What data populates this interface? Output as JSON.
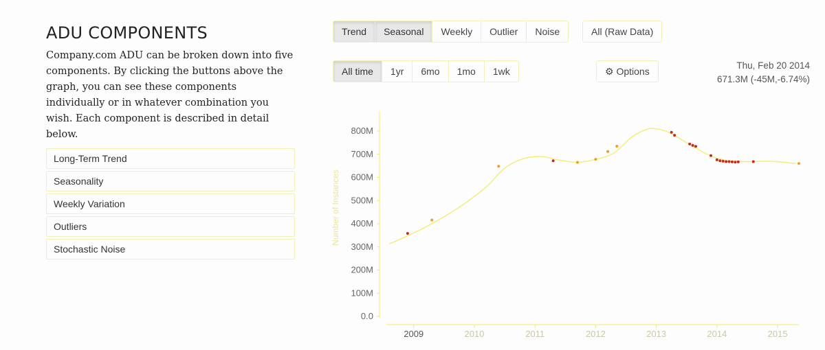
{
  "panel": {
    "title": "ADU COMPONENTS",
    "description": "Company.com ADU can be broken down into five components. By clicking the buttons above the graph, you can see these components individually or in whatever combination you wish. Each component is described in detail below.",
    "sections": [
      {
        "label": "Long-Term Trend"
      },
      {
        "label": "Seasonality"
      },
      {
        "label": "Weekly Variation"
      },
      {
        "label": "Outliers"
      },
      {
        "label": "Stochastic Noise"
      }
    ]
  },
  "component_buttons": {
    "trend": "Trend",
    "seasonal": "Seasonal",
    "weekly": "Weekly",
    "outlier": "Outlier",
    "noise": "Noise",
    "raw": "All (Raw Data)"
  },
  "range_buttons": {
    "all": "All time",
    "y1": "1yr",
    "m6": "6mo",
    "m1": "1mo",
    "w1": "1wk"
  },
  "options": {
    "label": "Options",
    "icon": "gear-icon"
  },
  "readout": {
    "date": "Thu, Feb 20 2014",
    "value": "671.3M  (-45M,-6.74%)"
  },
  "colors": {
    "trend_line": "#f3ec6a",
    "point_red": "#c62a1a",
    "point_orange": "#f0a020",
    "accent_border": "#f3f0b8"
  },
  "chart_data": {
    "type": "line",
    "ylabel": "Number of Instances",
    "xlabel": "",
    "y_tick_labels": [
      "0.0",
      "100M",
      "200M",
      "300M",
      "400M",
      "500M",
      "600M",
      "700M",
      "800M"
    ],
    "x_tick_labels": [
      "2009",
      "2010",
      "2011",
      "2012",
      "2013",
      "2014",
      "2015"
    ],
    "ylim": [
      0,
      880
    ],
    "xlim": [
      2008.55,
      2015.35
    ],
    "y_unit": "M",
    "series": [
      {
        "kind": "trend",
        "x": [
          2008.6,
          2009.0,
          2009.4,
          2009.8,
          2010.2,
          2010.5,
          2010.8,
          2011.1,
          2011.4,
          2011.7,
          2012.0,
          2012.3,
          2012.6,
          2012.85,
          2013.0,
          2013.2,
          2013.5,
          2013.8,
          2014.0,
          2014.2,
          2014.5,
          2014.8,
          2015.0,
          2015.3
        ],
        "y": [
          313,
          360,
          415,
          480,
          560,
          640,
          680,
          690,
          675,
          665,
          678,
          705,
          775,
          808,
          810,
          795,
          750,
          705,
          683,
          672,
          668,
          670,
          668,
          660
        ]
      },
      {
        "kind": "points",
        "x": [
          2008.9,
          2009.3,
          2010.4,
          2011.3,
          2011.7,
          2012.0,
          2012.2,
          2012.35,
          2013.25,
          2013.3,
          2013.55,
          2013.6,
          2013.65,
          2013.9,
          2014.0,
          2014.05,
          2014.1,
          2014.15,
          2014.2,
          2014.25,
          2014.3,
          2014.35,
          2014.6,
          2015.35
        ],
        "y": [
          358,
          416,
          648,
          672,
          665,
          678,
          712,
          735,
          795,
          782,
          744,
          738,
          734,
          694,
          676,
          672,
          670,
          668,
          668,
          667,
          666,
          667,
          668,
          660
        ],
        "colors": [
          "red",
          "orange",
          "orange",
          "red",
          "orange",
          "orange",
          "orange",
          "orange",
          "red",
          "red",
          "red",
          "red",
          "red",
          "red",
          "red",
          "red",
          "red",
          "red",
          "red",
          "red",
          "red",
          "red",
          "red",
          "orange"
        ]
      }
    ],
    "grid": false,
    "legend": "none"
  }
}
